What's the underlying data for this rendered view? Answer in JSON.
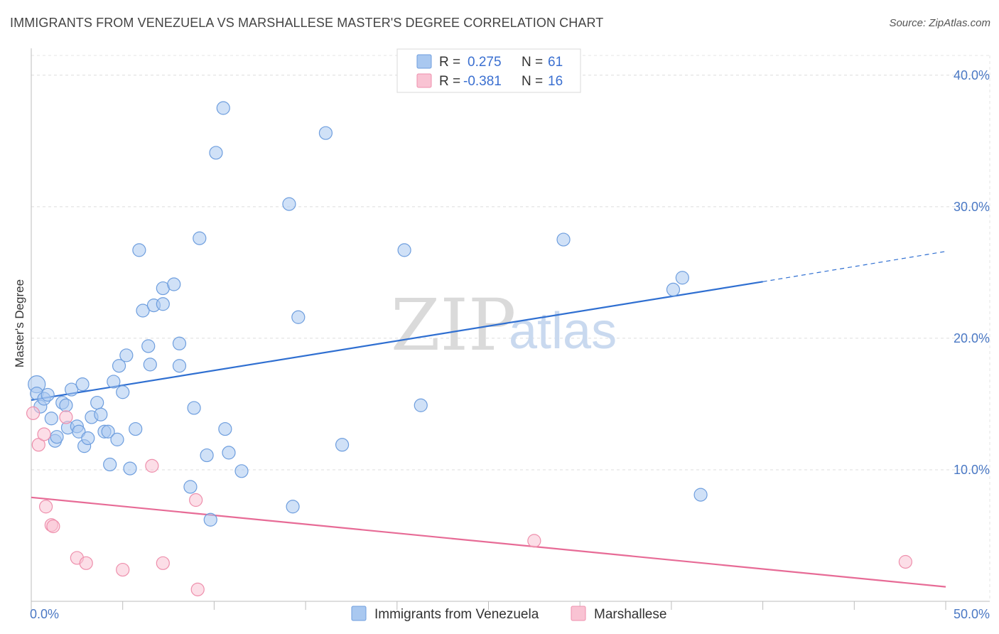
{
  "header": {
    "title": "IMMIGRANTS FROM VENEZUELA VS MARSHALLESE MASTER'S DEGREE CORRELATION CHART",
    "source": "Source: ZipAtlas.com"
  },
  "watermark": {
    "zip": "ZIP",
    "atlas": "atlas"
  },
  "legend": {
    "rows": [
      {
        "r_label": "R =",
        "r_value": "0.275",
        "n_label": "N =",
        "n_value": "61",
        "color": "#a9c8f0",
        "stroke": "#6e9ede"
      },
      {
        "r_label": "R =",
        "r_value": "-0.381",
        "n_label": "N =",
        "n_value": "16",
        "color": "#f9c3d3",
        "stroke": "#ee8fac"
      }
    ]
  },
  "bottom_legend": [
    {
      "label": "Immigrants from Venezuela",
      "color": "#a9c8f0",
      "stroke": "#6e9ede"
    },
    {
      "label": "Marshallese",
      "color": "#f9c3d3",
      "stroke": "#ee8fac"
    }
  ],
  "chart_data": {
    "type": "scatter",
    "title": "IMMIGRANTS FROM VENEZUELA VS MARSHALLESE MASTER'S DEGREE CORRELATION CHART",
    "xlabel": "",
    "ylabel": "Master's Degree",
    "xlim": [
      0,
      50
    ],
    "ylim": [
      0,
      41.5
    ],
    "x_tick_labels": [
      "0.0%",
      "50.0%"
    ],
    "y_ticks": [
      10,
      20,
      30,
      40
    ],
    "y_tick_labels": [
      "10.0%",
      "20.0%",
      "30.0%",
      "40.0%"
    ],
    "grid": true,
    "legend_position": "top-center",
    "series": [
      {
        "name": "Immigrants from Venezuela",
        "color": "#a9c8f0",
        "stroke": "#6e9ede",
        "line_color": "#2f6fd1",
        "trend": {
          "x0": 0,
          "y0": 15.3,
          "x1": 40,
          "y1": 24.3,
          "dash_to_x": 50,
          "dash_to_y": 26.6
        },
        "points": [
          [
            0.3,
            16.5
          ],
          [
            0.3,
            15.8
          ],
          [
            0.5,
            14.8
          ],
          [
            0.7,
            15.4
          ],
          [
            0.9,
            15.7
          ],
          [
            1.1,
            13.9
          ],
          [
            1.3,
            12.2
          ],
          [
            1.4,
            12.5
          ],
          [
            1.7,
            15.1
          ],
          [
            1.9,
            14.9
          ],
          [
            2.0,
            13.2
          ],
          [
            2.2,
            16.1
          ],
          [
            2.5,
            13.3
          ],
          [
            2.6,
            12.9
          ],
          [
            2.8,
            16.5
          ],
          [
            2.9,
            11.8
          ],
          [
            3.1,
            12.4
          ],
          [
            3.3,
            14.0
          ],
          [
            3.6,
            15.1
          ],
          [
            3.8,
            14.2
          ],
          [
            4.0,
            12.9
          ],
          [
            4.2,
            12.9
          ],
          [
            4.3,
            10.4
          ],
          [
            4.5,
            16.7
          ],
          [
            4.7,
            12.3
          ],
          [
            4.8,
            17.9
          ],
          [
            5.0,
            15.9
          ],
          [
            5.2,
            18.7
          ],
          [
            5.4,
            10.1
          ],
          [
            5.7,
            13.1
          ],
          [
            5.9,
            26.7
          ],
          [
            6.1,
            22.1
          ],
          [
            6.4,
            19.4
          ],
          [
            6.5,
            18.0
          ],
          [
            6.7,
            22.5
          ],
          [
            7.2,
            22.6
          ],
          [
            7.2,
            23.8
          ],
          [
            7.8,
            24.1
          ],
          [
            8.1,
            17.9
          ],
          [
            8.1,
            19.6
          ],
          [
            8.7,
            8.7
          ],
          [
            8.9,
            14.7
          ],
          [
            9.2,
            27.6
          ],
          [
            9.6,
            11.1
          ],
          [
            9.8,
            6.2
          ],
          [
            10.1,
            34.1
          ],
          [
            10.5,
            37.5
          ],
          [
            10.6,
            13.1
          ],
          [
            10.8,
            11.3
          ],
          [
            11.5,
            9.9
          ],
          [
            14.1,
            30.2
          ],
          [
            14.3,
            7.2
          ],
          [
            14.6,
            21.6
          ],
          [
            16.1,
            35.6
          ],
          [
            17.0,
            11.9
          ],
          [
            20.4,
            26.7
          ],
          [
            21.3,
            14.9
          ],
          [
            29.1,
            27.5
          ],
          [
            35.1,
            23.7
          ],
          [
            35.6,
            24.6
          ],
          [
            36.6,
            8.1
          ]
        ]
      },
      {
        "name": "Marshallese",
        "color": "#f9c3d3",
        "stroke": "#ee8fac",
        "line_color": "#e76b96",
        "trend": {
          "x0": 0,
          "y0": 7.9,
          "x1": 50,
          "y1": 1.1
        },
        "points": [
          [
            0.1,
            14.3
          ],
          [
            0.4,
            11.9
          ],
          [
            0.7,
            12.7
          ],
          [
            0.8,
            7.2
          ],
          [
            1.1,
            5.8
          ],
          [
            1.2,
            5.7
          ],
          [
            1.9,
            14.0
          ],
          [
            2.5,
            3.3
          ],
          [
            3.0,
            2.9
          ],
          [
            5.0,
            2.4
          ],
          [
            6.6,
            10.3
          ],
          [
            7.2,
            2.9
          ],
          [
            9.0,
            7.7
          ],
          [
            9.1,
            0.9
          ],
          [
            27.5,
            4.6
          ],
          [
            47.8,
            3.0
          ]
        ]
      }
    ]
  }
}
